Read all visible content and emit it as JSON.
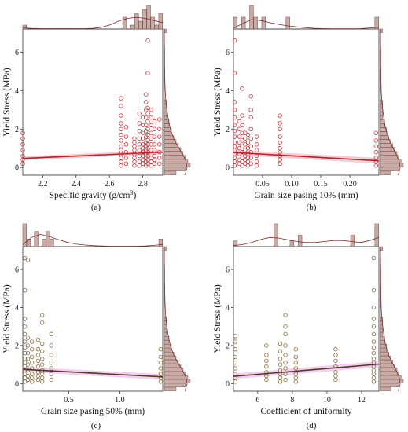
{
  "chart_data": [
    {
      "panel_label": "(a)",
      "type": "scatter",
      "xlabel": "Specific gravity (g/cm3)",
      "ylabel": "Yield Stress (MPa)",
      "x_ticks": [
        "2.2",
        "2.4",
        "2.6",
        "2.8"
      ],
      "y_ticks": [
        "0",
        "2",
        "4",
        "6"
      ],
      "xlim": [
        2.08,
        2.92
      ],
      "ylim": [
        -0.4,
        7.2
      ],
      "point_color": "#c0393f",
      "fit_color": "#b22229",
      "band_color": "#f2c4cc",
      "points": [
        {
          "x": 2.08,
          "y": [
            0.2,
            0.4,
            0.6,
            0.9,
            1.2,
            1.5,
            1.8
          ]
        },
        {
          "x": 2.67,
          "y": [
            0.1,
            0.3,
            0.5,
            0.7,
            0.9,
            1.1,
            1.4,
            1.7,
            2.0,
            2.3,
            2.7,
            3.2,
            3.6
          ]
        },
        {
          "x": 2.7,
          "y": [
            0.2,
            0.5,
            0.8,
            1.2,
            1.6,
            2.1
          ]
        },
        {
          "x": 2.75,
          "y": [
            0.1,
            0.3,
            0.5,
            0.7,
            0.9,
            1.1,
            1.3,
            1.5
          ]
        },
        {
          "x": 2.78,
          "y": [
            0.1,
            0.3,
            0.6,
            0.9,
            1.2,
            1.5,
            1.9,
            2.3,
            2.8
          ]
        },
        {
          "x": 2.8,
          "y": [
            0.2,
            0.4,
            0.6,
            0.8,
            1.0,
            1.2,
            1.5,
            1.8,
            2.2,
            2.6
          ]
        },
        {
          "x": 2.82,
          "y": [
            0.1,
            0.3,
            0.5,
            0.7,
            0.9,
            1.1,
            1.3,
            1.6,
            1.9,
            2.2,
            2.6,
            3.0,
            3.4,
            3.8
          ]
        },
        {
          "x": 2.83,
          "y": [
            0.2,
            0.4,
            0.6,
            0.8,
            1.0,
            1.2,
            1.4,
            1.7,
            2.0,
            2.4,
            2.8,
            3.1,
            4.9,
            6.6
          ]
        },
        {
          "x": 2.85,
          "y": [
            0.1,
            0.3,
            0.5,
            0.7,
            0.9,
            1.2,
            1.5,
            1.8,
            2.2,
            2.6,
            3.0
          ]
        },
        {
          "x": 2.87,
          "y": [
            0.2,
            0.4,
            0.6,
            0.9,
            1.2,
            1.6,
            2.0,
            2.4
          ]
        },
        {
          "x": 2.9,
          "y": [
            0.2,
            0.5,
            0.8,
            1.2,
            1.6,
            2.0,
            2.5
          ]
        }
      ],
      "fit": {
        "x": [
          2.08,
          2.92
        ],
        "y": [
          0.47,
          0.8
        ]
      },
      "band": {
        "lower": [
          0.37,
          0.69
        ],
        "upper": [
          0.58,
          0.91
        ]
      },
      "hist_top": [
        1,
        0,
        0,
        0,
        0,
        0,
        0,
        0,
        0,
        0,
        0,
        0,
        0,
        0,
        0,
        0,
        0,
        0,
        0,
        0,
        0,
        0,
        0,
        0,
        0,
        3,
        0,
        1,
        4,
        2,
        5,
        6,
        3,
        1,
        4
      ],
      "density_top": [
        0.05,
        0.03,
        0.02,
        0.02,
        0.02,
        0.02,
        0.02,
        0.02,
        0.03,
        0.08,
        0.2,
        0.38,
        0.5,
        0.55,
        0.5,
        0.4,
        0.3
      ],
      "hist_right": [
        5,
        9,
        11,
        10,
        9,
        8,
        7,
        6,
        5,
        4,
        3,
        3,
        2,
        2,
        1,
        1,
        1,
        1,
        1,
        0,
        0,
        0,
        0,
        0,
        0,
        0,
        0,
        0,
        0,
        0,
        0,
        0,
        0,
        0,
        0,
        0,
        1
      ],
      "density_right": [
        0.9,
        1.0,
        0.95,
        0.8,
        0.62,
        0.45,
        0.33,
        0.24,
        0.18,
        0.13,
        0.09,
        0.06,
        0.04,
        0.03,
        0.02,
        0.02,
        0.01,
        0.01,
        0.01,
        0.0,
        0.0,
        0.0
      ]
    },
    {
      "panel_label": "(b)",
      "type": "scatter",
      "xlabel": "Grain size pasing 10% (mm)",
      "ylabel": "Yield Stress (MPa)",
      "x_ticks": [
        "0.05",
        "0.10",
        "0.15",
        "0.20"
      ],
      "y_ticks": [
        "0",
        "2",
        "4",
        "6"
      ],
      "xlim": [
        0.0,
        0.25
      ],
      "ylim": [
        -0.4,
        7.2
      ],
      "point_color": "#c0393f",
      "fit_color": "#b22229",
      "band_color": "#f2c4cc",
      "points": [
        {
          "x": 0.002,
          "y": [
            0.1,
            0.3,
            0.5,
            0.7,
            0.9,
            1.1,
            1.3,
            1.6,
            1.9,
            2.2,
            2.6,
            3.0,
            3.4,
            4.9,
            6.6
          ]
        },
        {
          "x": 0.01,
          "y": [
            0.2,
            0.4,
            0.7,
            1.0,
            1.3,
            1.6,
            2.0,
            2.4
          ]
        },
        {
          "x": 0.015,
          "y": [
            0.1,
            0.3,
            0.5,
            0.8,
            1.1,
            1.4,
            1.8,
            2.2,
            2.7,
            4.1
          ]
        },
        {
          "x": 0.02,
          "y": [
            0.2,
            0.4,
            0.6,
            0.9,
            1.2,
            1.5,
            1.8
          ]
        },
        {
          "x": 0.025,
          "y": [
            0.1,
            0.3,
            0.5,
            0.7,
            1.0,
            1.3,
            1.7
          ]
        },
        {
          "x": 0.03,
          "y": [
            0.2,
            0.5,
            0.8,
            1.1,
            1.5,
            2.0,
            2.6,
            3.0,
            3.7
          ]
        },
        {
          "x": 0.04,
          "y": [
            0.1,
            0.3,
            0.6,
            0.9,
            1.2,
            1.6
          ]
        },
        {
          "x": 0.08,
          "y": [
            0.2,
            0.4,
            0.6,
            0.8,
            1.0,
            1.3,
            1.6,
            2.0,
            2.3,
            2.7
          ]
        },
        {
          "x": 0.245,
          "y": [
            0.1,
            0.3,
            0.5,
            0.8,
            1.1,
            1.4,
            1.8
          ]
        }
      ],
      "fit": {
        "x": [
          0.0,
          0.25
        ],
        "y": [
          0.78,
          0.35
        ]
      },
      "band": {
        "lower": [
          0.65,
          0.2
        ],
        "upper": [
          0.9,
          0.5
        ]
      },
      "hist_top": [
        1,
        0,
        1,
        0,
        2,
        1,
        0,
        1,
        0,
        0,
        0,
        0,
        0,
        1,
        0,
        0,
        0,
        0,
        0,
        0,
        0,
        0,
        0,
        0,
        0,
        0,
        0,
        0,
        0,
        0,
        0,
        0,
        0,
        0,
        0,
        1
      ],
      "density_top": [
        0.05,
        0.25,
        0.45,
        0.4,
        0.3,
        0.22,
        0.15,
        0.1,
        0.06,
        0.03,
        0.02,
        0.01,
        0.01,
        0.01,
        0.02,
        0.05,
        0.08
      ],
      "hist_right": [
        5,
        9,
        11,
        10,
        9,
        8,
        7,
        6,
        5,
        4,
        3,
        3,
        2,
        2,
        1,
        1,
        1,
        1,
        1,
        0,
        0,
        0,
        0,
        0,
        0,
        0,
        0,
        0,
        0,
        0,
        0,
        0,
        0,
        0,
        0,
        0,
        1
      ],
      "density_right": [
        0.9,
        1.0,
        0.95,
        0.8,
        0.62,
        0.45,
        0.33,
        0.24,
        0.18,
        0.13,
        0.09,
        0.06,
        0.04,
        0.03,
        0.02,
        0.02,
        0.01,
        0.01,
        0.01,
        0.0,
        0.0,
        0.0
      ]
    },
    {
      "panel_label": "(c)",
      "type": "scatter",
      "xlabel": "Grain size pasing 50% (mm)",
      "ylabel": "Yield Stress (MPa)",
      "x_ticks": [
        "0.5",
        "1.0"
      ],
      "y_ticks": [
        "0",
        "2",
        "4",
        "6"
      ],
      "xlim": [
        0.05,
        1.42
      ],
      "ylim": [
        -0.4,
        7.2
      ],
      "point_color": "#8a6a3a",
      "fit_color": "#4a3a2a",
      "band_color": "#f4c6ea",
      "points": [
        {
          "x": 0.07,
          "y": [
            0.1,
            0.3,
            0.5,
            0.7,
            0.9,
            1.1,
            1.3,
            1.6,
            1.9,
            2.2,
            2.6,
            3.0,
            3.4,
            4.9,
            6.6
          ]
        },
        {
          "x": 0.1,
          "y": [
            0.2,
            0.4,
            0.7,
            1.0,
            1.3,
            1.6,
            2.0,
            2.4,
            6.5
          ]
        },
        {
          "x": 0.14,
          "y": [
            0.1,
            0.3,
            0.5,
            0.8,
            1.1,
            1.4,
            1.8,
            2.2
          ]
        },
        {
          "x": 0.2,
          "y": [
            0.2,
            0.4,
            0.6,
            0.9,
            1.2,
            1.5,
            1.8,
            2.3
          ]
        },
        {
          "x": 0.24,
          "y": [
            0.1,
            0.3,
            0.5,
            0.7,
            1.0,
            1.3,
            1.7,
            2.1,
            3.2,
            3.6
          ]
        },
        {
          "x": 0.33,
          "y": [
            0.2,
            0.5,
            0.8,
            1.1,
            1.5,
            2.0,
            2.6
          ]
        },
        {
          "x": 1.4,
          "y": [
            0.1,
            0.3,
            0.5,
            0.8,
            1.1,
            1.4,
            1.8
          ]
        }
      ],
      "fit": {
        "x": [
          0.05,
          1.42
        ],
        "y": [
          0.75,
          0.35
        ]
      },
      "band": {
        "lower": [
          0.62,
          0.2
        ],
        "upper": [
          0.88,
          0.5
        ]
      },
      "hist_top": [
        3,
        1,
        0,
        2,
        0,
        1,
        2,
        1,
        0,
        0,
        0,
        0,
        0,
        0,
        0,
        0,
        0,
        0,
        0,
        0,
        0,
        0,
        0,
        0,
        0,
        0,
        0,
        0,
        0,
        0,
        0,
        0,
        0,
        0,
        0,
        1
      ],
      "density_top": [
        0.1,
        0.45,
        0.6,
        0.5,
        0.35,
        0.22,
        0.13,
        0.08,
        0.05,
        0.03,
        0.02,
        0.02,
        0.02,
        0.02,
        0.03,
        0.06,
        0.1
      ],
      "hist_right": [
        5,
        9,
        11,
        10,
        9,
        8,
        7,
        6,
        5,
        4,
        3,
        3,
        2,
        2,
        1,
        1,
        1,
        1,
        1,
        0,
        0,
        0,
        0,
        0,
        0,
        0,
        0,
        0,
        0,
        0,
        0,
        0,
        0,
        0,
        0,
        0,
        1
      ],
      "density_right": [
        0.9,
        1.0,
        0.95,
        0.8,
        0.62,
        0.45,
        0.33,
        0.24,
        0.18,
        0.13,
        0.09,
        0.06,
        0.04,
        0.03,
        0.02,
        0.02,
        0.01,
        0.01,
        0.01,
        0.0,
        0.0,
        0.0
      ]
    },
    {
      "panel_label": "(d)",
      "type": "scatter",
      "xlabel": "Coefficient of uniformity",
      "ylabel": "Yield Stress (MPa)",
      "x_ticks": [
        "6",
        "8",
        "10",
        "12"
      ],
      "y_ticks": [
        "0",
        "2",
        "4",
        "6"
      ],
      "xlim": [
        4.6,
        13.0
      ],
      "ylim": [
        -0.4,
        7.2
      ],
      "point_color": "#8a6a3a",
      "fit_color": "#4a3a2a",
      "band_color": "#f4c6ea",
      "points": [
        {
          "x": 4.7,
          "y": [
            0.1,
            0.3,
            0.5,
            0.8,
            1.1,
            1.4,
            1.8,
            2.2,
            2.5
          ]
        },
        {
          "x": 6.5,
          "y": [
            0.2,
            0.4,
            0.6,
            0.9,
            1.2,
            1.5,
            2.0
          ]
        },
        {
          "x": 7.3,
          "y": [
            0.1,
            0.3,
            0.5,
            0.7,
            1.0,
            1.3,
            1.7,
            2.1
          ]
        },
        {
          "x": 7.6,
          "y": [
            0.2,
            0.5,
            0.8,
            1.1,
            1.5,
            2.0,
            2.6,
            3.0,
            3.6
          ]
        },
        {
          "x": 8.2,
          "y": [
            0.1,
            0.3,
            0.5,
            0.8,
            1.1,
            1.4,
            1.8
          ]
        },
        {
          "x": 10.5,
          "y": [
            0.2,
            0.4,
            0.6,
            0.9,
            1.2,
            1.5,
            1.8
          ]
        },
        {
          "x": 12.7,
          "y": [
            0.1,
            0.3,
            0.5,
            0.7,
            0.9,
            1.1,
            1.3,
            1.6,
            1.9,
            2.2,
            2.6,
            3.0,
            3.4,
            4.0,
            4.9,
            6.6
          ]
        }
      ],
      "fit": {
        "x": [
          4.6,
          13.0
        ],
        "y": [
          0.38,
          1.02
        ]
      },
      "band": {
        "lower": [
          0.24,
          0.86
        ],
        "upper": [
          0.52,
          1.18
        ]
      },
      "hist_top": [
        1,
        0,
        0,
        0,
        0,
        0,
        0,
        0,
        0,
        0,
        4,
        0,
        0,
        0,
        1,
        0,
        2,
        0,
        0,
        0,
        0,
        0,
        0,
        0,
        0,
        0,
        0,
        0,
        0,
        2,
        0,
        0,
        0,
        0,
        0,
        4
      ],
      "density_top": [
        0.05,
        0.1,
        0.2,
        0.35,
        0.45,
        0.42,
        0.33,
        0.25,
        0.2,
        0.2,
        0.25,
        0.3,
        0.3,
        0.25,
        0.2,
        0.3,
        0.45
      ],
      "hist_right": [
        5,
        9,
        11,
        10,
        9,
        8,
        7,
        6,
        5,
        4,
        3,
        3,
        2,
        2,
        1,
        1,
        1,
        1,
        1,
        0,
        0,
        0,
        0,
        0,
        0,
        0,
        0,
        0,
        0,
        0,
        0,
        0,
        0,
        0,
        0,
        0,
        1
      ],
      "density_right": [
        0.9,
        1.0,
        0.95,
        0.8,
        0.62,
        0.45,
        0.33,
        0.24,
        0.18,
        0.13,
        0.09,
        0.06,
        0.04,
        0.03,
        0.02,
        0.02,
        0.01,
        0.01,
        0.01,
        0.0,
        0.0,
        0.0
      ]
    }
  ],
  "style": {
    "hist_fill": "#c9aaa4",
    "hist_stroke": "#6b4a45",
    "density_stroke": "#7a2a2a",
    "axis_color": "#333333"
  }
}
